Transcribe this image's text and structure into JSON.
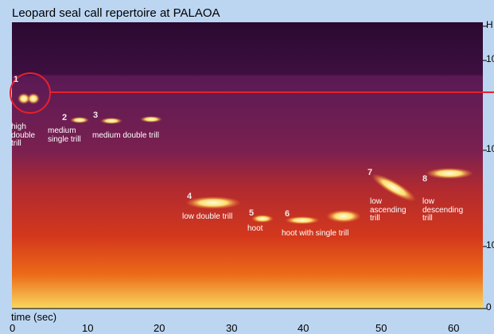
{
  "title": "Leopard seal call repertoire at PALAOA",
  "x_axis": {
    "label": "time (sec)",
    "ticks": [
      "0",
      "10",
      "20",
      "30",
      "40",
      "50",
      "60"
    ]
  },
  "y_axis": {
    "label": "H",
    "ticks": [
      "10",
      "10",
      "10",
      "0"
    ]
  },
  "calls": [
    {
      "number": "1",
      "name": "high double trill"
    },
    {
      "number": "2",
      "name": "medium single trill"
    },
    {
      "number": "3",
      "name": "medium double trill"
    },
    {
      "number": "4",
      "name": "low double trill"
    },
    {
      "number": "5",
      "name": "hoot"
    },
    {
      "number": "6",
      "name": "hoot with single trill"
    },
    {
      "number": "7",
      "name": "low ascending trill"
    },
    {
      "number": "8",
      "name": "low descending trill"
    }
  ]
}
